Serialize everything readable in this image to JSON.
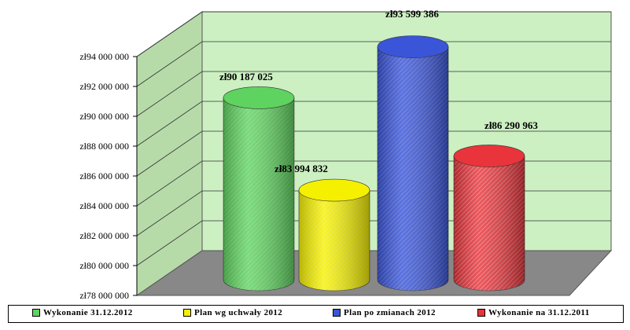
{
  "chart_data": {
    "type": "bar",
    "style": "3d-cylinder",
    "title": "",
    "xlabel": "",
    "ylabel": "",
    "ylim": [
      78000000,
      94000000
    ],
    "ytick_values": [
      78000000,
      80000000,
      82000000,
      84000000,
      86000000,
      88000000,
      90000000,
      92000000,
      94000000
    ],
    "ytick_labels": [
      "zł78 000 000",
      "zł80 000 000",
      "zł82 000 000",
      "zł84 000 000",
      "zł86 000 000",
      "zł88 000 000",
      "zł90 000 000",
      "zł92 000 000",
      "zł94 000 000"
    ],
    "grid": true,
    "legend_position": "bottom",
    "background_color": "#ccf0c2",
    "floor_color": "#888888",
    "series": [
      {
        "name": "Wykonanie 31.12.2012",
        "value": 90187025,
        "label": "zł90 187 025",
        "color": "#5fd35f"
      },
      {
        "name": "Plan wg uchwały 2012",
        "value": 83994832,
        "label": "zł83 994 832",
        "color": "#f5f000"
      },
      {
        "name": "Plan po zmianach 2012",
        "value": 93599386,
        "label": "zł93 599 386",
        "color": "#3a55d8"
      },
      {
        "name": "Wykonanie na 31.12.2011",
        "value": 86290963,
        "label": "zł86 290 963",
        "color": "#e8343a"
      }
    ]
  }
}
